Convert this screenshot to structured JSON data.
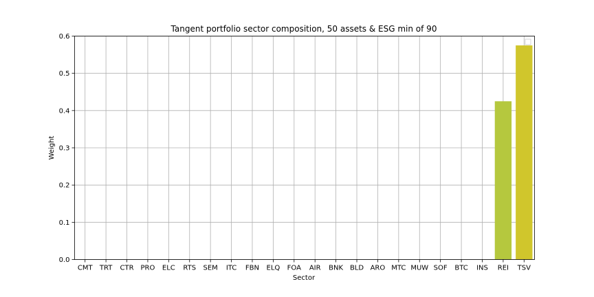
{
  "chart_data": {
    "type": "bar",
    "title": "Tangent portfolio sector composition, 50 assets & ESG min of 90",
    "xlabel": "Sector",
    "ylabel": "Weight",
    "categories": [
      "CMT",
      "TRT",
      "CTR",
      "PRO",
      "ELC",
      "RTS",
      "SEM",
      "ITC",
      "FBN",
      "ELQ",
      "FOA",
      "AIR",
      "BNK",
      "BLD",
      "ARO",
      "MTC",
      "MUW",
      "SOF",
      "BTC",
      "INS",
      "REI",
      "TSV"
    ],
    "values": [
      0,
      0,
      0,
      0,
      0,
      0,
      0,
      0,
      0,
      0,
      0,
      0,
      0,
      0,
      0,
      0,
      0,
      0,
      0,
      0,
      0.425,
      0.575
    ],
    "bar_colors": {
      "REI": "#b5c83e",
      "TSV": "#d0c62c"
    },
    "ylim": [
      0,
      0.6
    ],
    "yticks": [
      "0.0",
      "0.1",
      "0.2",
      "0.3",
      "0.4",
      "0.5",
      "0.6"
    ],
    "grid": true,
    "legend": "top-right, empty"
  }
}
